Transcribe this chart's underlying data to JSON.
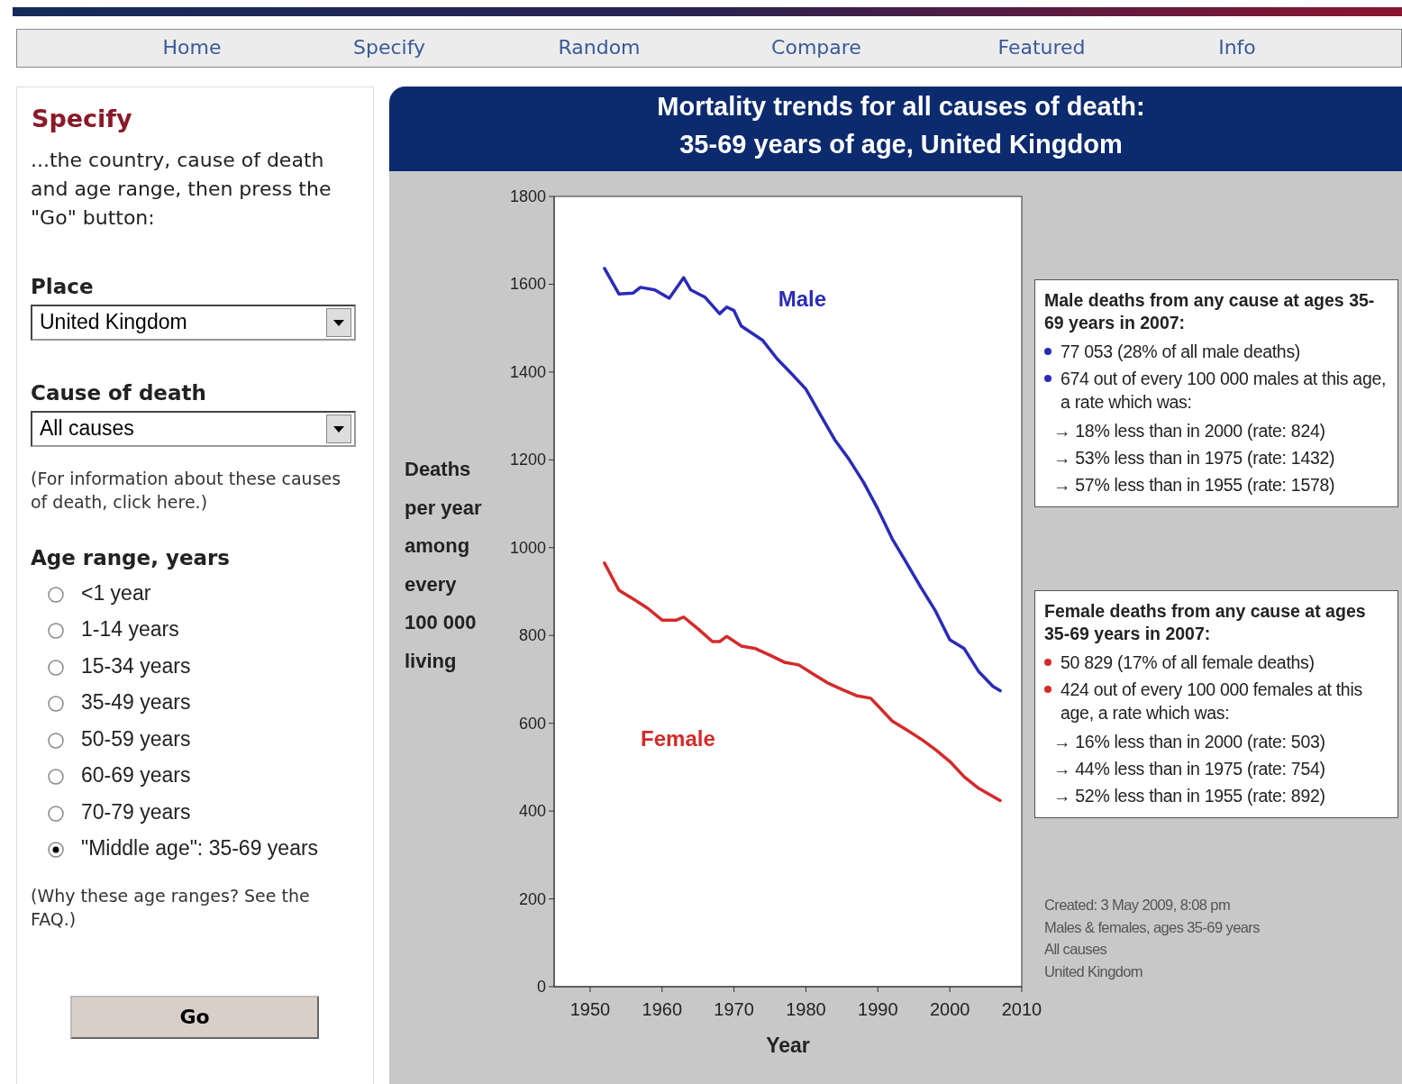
{
  "chart_data": {
    "type": "line",
    "title": "Mortality trends for all causes of death:",
    "subtitle": "35-69 years of age, United Kingdom",
    "xlabel": "Year",
    "ylabel": "Deaths per year among every 100 000 living",
    "xlim": [
      1945,
      2010
    ],
    "xticks": [
      1950,
      1960,
      1970,
      1980,
      1990,
      2000,
      2010
    ],
    "ylim": [
      0,
      1800
    ],
    "yticks": [
      0,
      200,
      400,
      600,
      800,
      1000,
      1200,
      1400,
      1600,
      1800
    ],
    "grid": false,
    "series": [
      {
        "name": "Male",
        "color": "#2b2bb8",
        "x": [
          1952,
          1954,
          1956,
          1957,
          1959,
          1961,
          1963,
          1964,
          1966,
          1968,
          1969,
          1970,
          1971,
          1974,
          1976,
          1978,
          1980,
          1982,
          1984,
          1986,
          1988,
          1990,
          1992,
          1994,
          1996,
          1998,
          2000,
          2002,
          2004,
          2006,
          2007
        ],
        "values": [
          1636,
          1578,
          1580,
          1593,
          1587,
          1568,
          1615,
          1587,
          1570,
          1533,
          1548,
          1540,
          1505,
          1472,
          1430,
          1396,
          1361,
          1303,
          1246,
          1201,
          1149,
          1088,
          1020,
          965,
          909,
          856,
          790,
          770,
          718,
          684,
          674
        ]
      },
      {
        "name": "Female",
        "color": "#d42a2a",
        "x": [
          1952,
          1954,
          1956,
          1958,
          1960,
          1962,
          1963,
          1965,
          1967,
          1968,
          1969,
          1971,
          1973,
          1975,
          1977,
          1979,
          1981,
          1983,
          1985,
          1987,
          1989,
          1990,
          1992,
          1994,
          1996,
          1998,
          2000,
          2002,
          2004,
          2007
        ],
        "values": [
          965,
          903,
          883,
          862,
          835,
          835,
          842,
          815,
          786,
          786,
          798,
          776,
          770,
          755,
          739,
          733,
          712,
          692,
          677,
          663,
          657,
          640,
          605,
          585,
          564,
          540,
          513,
          478,
          452,
          424
        ]
      }
    ],
    "annotations": [
      "Male deaths from any cause at ages 35-69 years in 2007:",
      "77 053 (28% of all male deaths)",
      "674 out of every 100 000 males at this age, a rate which was:",
      "→ 18% less than in 2000 (rate: 824)",
      "→ 53% less than in 1975 (rate: 1432)",
      "→ 57% less than in 1955 (rate: 1578)",
      "Female deaths from any cause at ages 35-69 years in 2007:",
      "50 829 (17% of all female deaths)",
      "424 out of every 100 000 females at this age, a rate which was:",
      "→ 16% less than in 2000 (rate: 503)",
      "→ 44% less than in 1975 (rate: 754)",
      "→ 52% less than in 1955 (rate: 892)",
      "Created: 3 May 2009, 8:08 pm",
      "Males & females, ages 35-69 years",
      "All causes",
      "United Kingdom",
      "Home",
      "Specify",
      "Random",
      "Compare",
      "Featured",
      "Info",
      "Specify",
      "...the country, cause of death and age range, then press the \"Go\" button:",
      "Place",
      "United Kingdom",
      "Cause of death",
      "All causes",
      "(For information about these causes of death, click here.)",
      "Age range, years",
      "<1 year",
      "1-14 years",
      "15-34 years",
      "35-49 years",
      "50-59 years",
      "60-69 years",
      "70-79 years",
      "\"Middle age\": 35-69 years",
      "(Why these age ranges? See the FAQ.)",
      "Go"
    ]
  }
}
